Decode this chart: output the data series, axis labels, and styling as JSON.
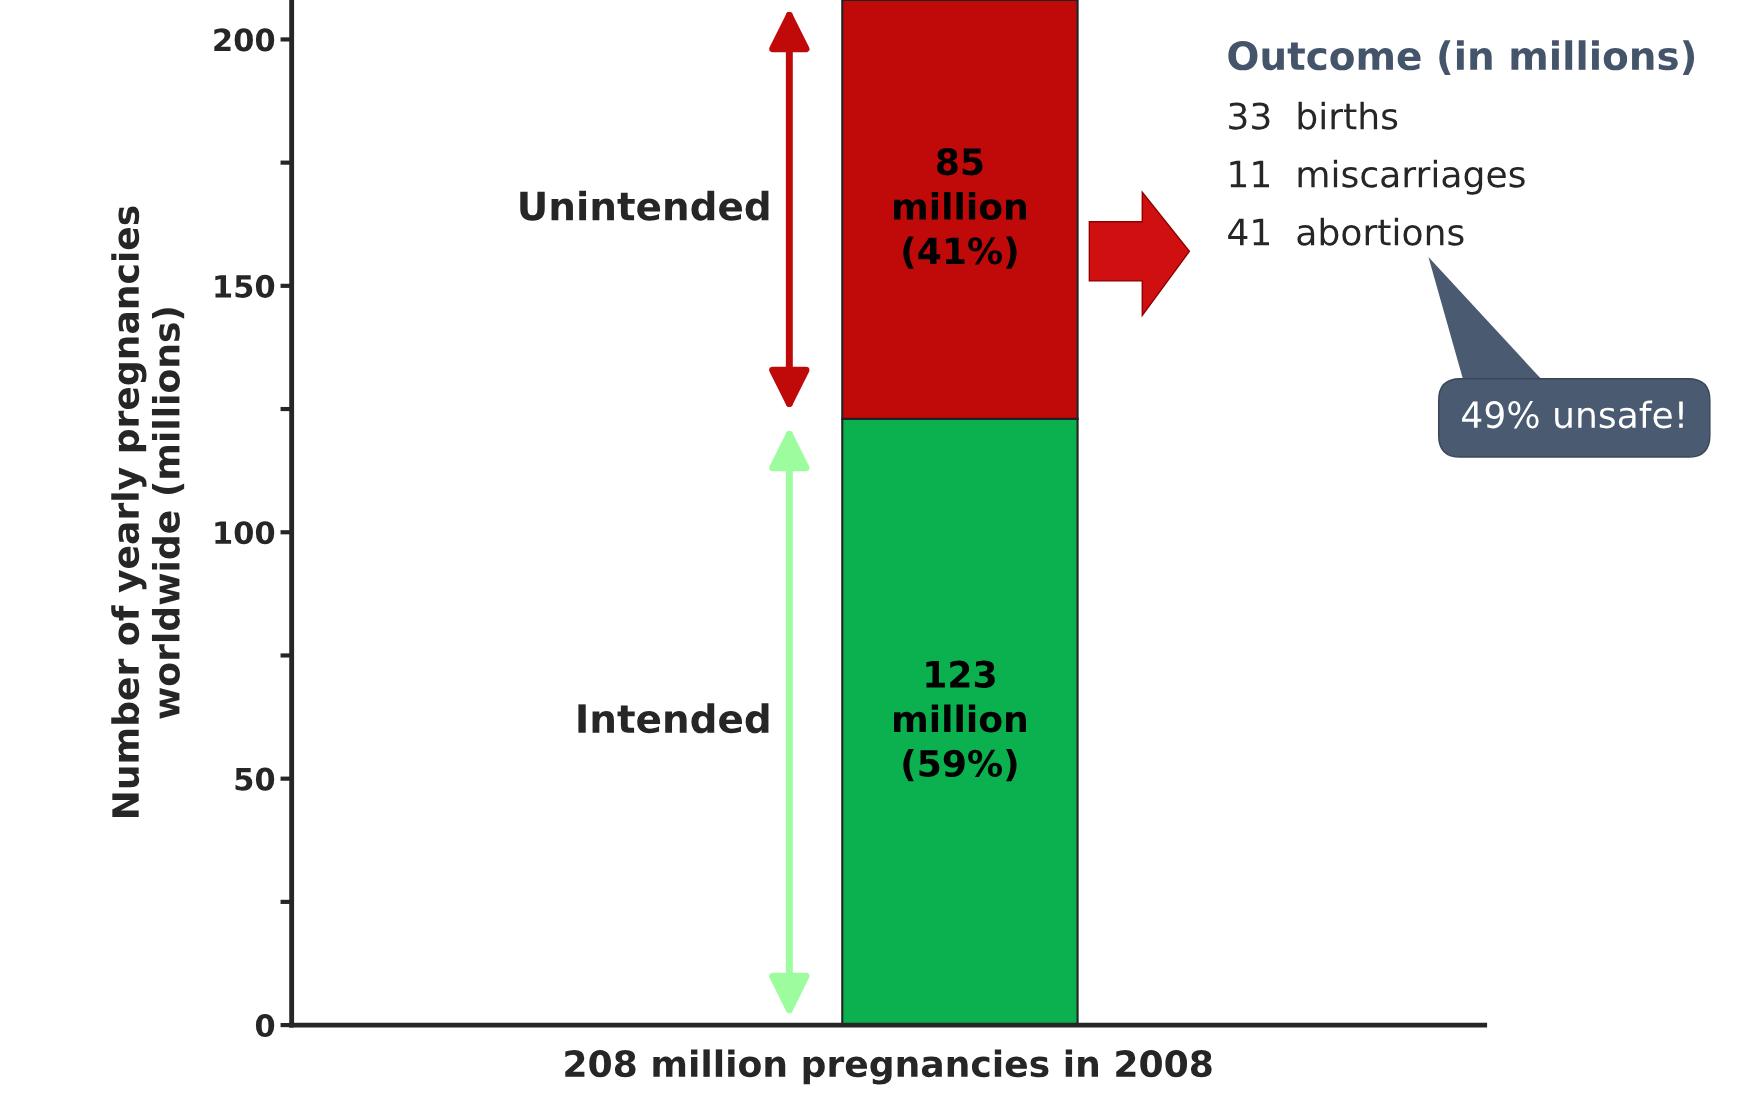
{
  "chart_data": {
    "type": "bar",
    "stacked": true,
    "xlabel": "208 million pregnancies in 2008",
    "ylabel": "Number of yearly pregnancies\nworldwide (millions)",
    "categories": [
      null
    ],
    "series": [
      {
        "name": "Intended",
        "color": "#0bb04f",
        "values": [
          123
        ],
        "value_labels": [
          "123\nmillion\n(59%)"
        ]
      },
      {
        "name": "Unintended",
        "color": "#c00a0a",
        "values": [
          85
        ],
        "value_labels": [
          "85\nmillion\n(41%)"
        ]
      }
    ],
    "ylim": [
      0,
      208
    ],
    "yticks": [
      0,
      {
        "value": 25,
        "label": null
      },
      50,
      {
        "value": 75,
        "label": null
      },
      100,
      {
        "value": 125,
        "label": null
      },
      150,
      {
        "value": 175,
        "label": null
      },
      200
    ],
    "annotations": [
      "Outcome (in millions)",
      "33  births",
      "11  miscarriages",
      "41  abortions",
      "49% unsafe!"
    ],
    "grid": false,
    "legend": false
  }
}
